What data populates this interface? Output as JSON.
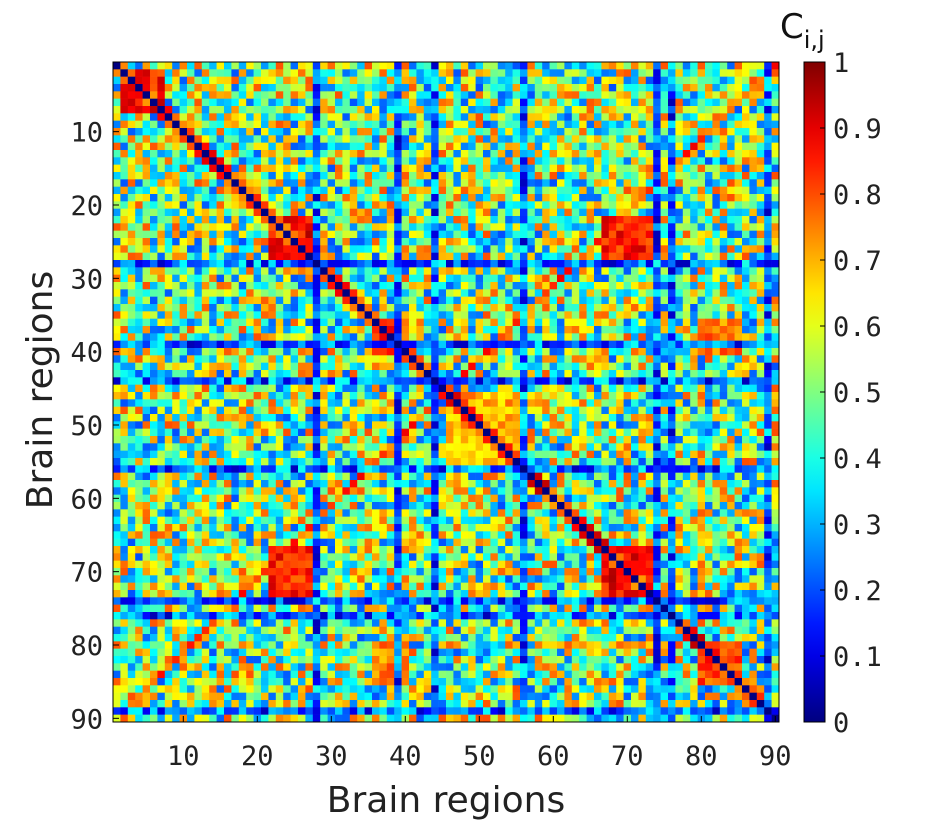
{
  "chart_data": {
    "type": "heatmap",
    "title": "",
    "xlabel": "Brain regions",
    "ylabel": "Brain regions",
    "n_regions": 90,
    "x_ticks": [
      10,
      20,
      30,
      40,
      50,
      60,
      70,
      80,
      90
    ],
    "y_ticks": [
      10,
      20,
      30,
      40,
      50,
      60,
      70,
      80,
      90
    ],
    "colormap": "jet",
    "clim": [
      0,
      1
    ],
    "diagonal_value": 0,
    "colorbar": {
      "title_main": "C",
      "title_sub": "i,j",
      "ticks": [
        0,
        0.1,
        0.2,
        0.3,
        0.4,
        0.5,
        0.6,
        0.7,
        0.8,
        0.9,
        1
      ],
      "tick_labels": [
        "0",
        "0.1",
        "0.2",
        "0.3",
        "0.4",
        "0.5",
        "0.6",
        "0.7",
        "0.8",
        "0.9",
        "1"
      ]
    },
    "high_correlation_blocks": [
      {
        "rows": [
          2,
          7
        ],
        "cols": [
          2,
          7
        ],
        "value": 0.85
      },
      {
        "rows": [
          22,
          28
        ],
        "cols": [
          22,
          28
        ],
        "value": 0.88
      },
      {
        "rows": [
          22,
          28
        ],
        "cols": [
          67,
          73
        ],
        "value": 0.85
      },
      {
        "rows": [
          67,
          73
        ],
        "cols": [
          22,
          28
        ],
        "value": 0.85
      },
      {
        "rows": [
          67,
          73
        ],
        "cols": [
          67,
          73
        ],
        "value": 0.88
      },
      {
        "rows": [
          36,
          40
        ],
        "cols": [
          36,
          40
        ],
        "value": 0.8
      },
      {
        "rows": [
          80,
          85
        ],
        "cols": [
          80,
          85
        ],
        "value": 0.8
      },
      {
        "rows": [
          36,
          40
        ],
        "cols": [
          80,
          85
        ],
        "value": 0.75
      },
      {
        "rows": [
          80,
          85
        ],
        "cols": [
          36,
          40
        ],
        "value": 0.75
      },
      {
        "rows": [
          46,
          55
        ],
        "cols": [
          46,
          55
        ],
        "value": 0.7
      }
    ],
    "low_correlation_regions": [
      28,
      39,
      44,
      56,
      74,
      76,
      89
    ]
  }
}
